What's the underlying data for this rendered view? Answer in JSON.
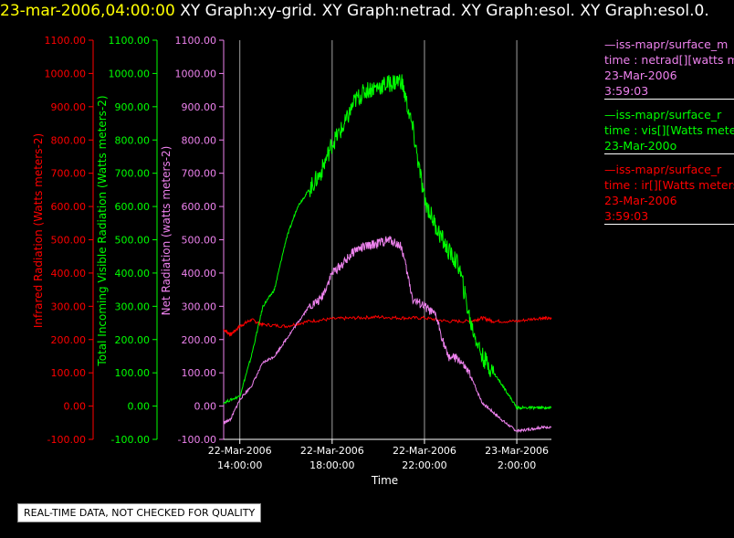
{
  "header": {
    "datetime": "23-mar-2006,04:00:00",
    "titles": "XY Graph:xy-grid.  XY Graph:netrad.  XY Graph:esol.  XY Graph:esol.0."
  },
  "notice": "REAL-TIME DATA, NOT CHECKED FOR QUALITY",
  "legend": [
    {
      "lines": [
        "—iss-mapr/surface_m",
        "time : netrad[][watts me",
        "23-Mar-2006",
        "3:59:03"
      ],
      "color": "#ee82ee"
    },
    {
      "lines": [
        "—iss-mapr/surface_r",
        "time : vis[][Watts mete",
        "23-Mar-200o"
      ],
      "color": "#00ff00"
    },
    {
      "lines": [
        "—iss-mapr/surface_r",
        "time : ir[][Watts meters",
        "23-Mar-2006",
        "3:59:03"
      ],
      "color": "#ff0000"
    }
  ],
  "chart_data": {
    "type": "line",
    "xlabel": "Time",
    "x_ticks": [
      {
        "line1": "22-Mar-2006",
        "line2": "14:00:00",
        "hours": 0
      },
      {
        "line1": "22-Mar-2006",
        "line2": "18:00:00",
        "hours": 4
      },
      {
        "line1": "22-Mar-2006",
        "line2": "22:00:00",
        "hours": 8
      },
      {
        "line1": "23-Mar-2006",
        "line2": "2:00:00",
        "hours": 12
      }
    ],
    "xlim_hours": [
      -0.7,
      13.5
    ],
    "ylim": [
      -100,
      1100
    ],
    "y_ticks": [
      "-100.00",
      "0.00",
      "100.00",
      "200.00",
      "300.00",
      "400.00",
      "500.00",
      "600.00",
      "700.00",
      "800.00",
      "900.00",
      "1000.00",
      "1100.00"
    ],
    "axes": [
      {
        "label": "Infrared Radiation (Watts meters-2)",
        "color": "#ff0000"
      },
      {
        "label": "Total Incoming Visible Radiation (Watts meters-2)",
        "color": "#00ff00"
      },
      {
        "label": "Net Radiation (watts meters-2)",
        "color": "#ee82ee"
      }
    ],
    "series": [
      {
        "color": "#ff0000",
        "x_hours": [
          -0.7,
          -0.4,
          0,
          0.5,
          1,
          2,
          3,
          4,
          5,
          6,
          7,
          8,
          9,
          10,
          10.5,
          11,
          12,
          13,
          13.5
        ],
        "values": [
          230,
          215,
          240,
          260,
          245,
          240,
          255,
          262,
          265,
          268,
          265,
          265,
          255,
          255,
          265,
          255,
          255,
          265,
          262
        ]
      },
      {
        "color": "#00ff00",
        "x_hours": [
          -0.7,
          0,
          0.5,
          1,
          1.5,
          2,
          2.5,
          3,
          3.5,
          4,
          4.5,
          5,
          5.5,
          6,
          6.5,
          7,
          7.5,
          8,
          8.5,
          9,
          9.5,
          10,
          10.5,
          11,
          11.5,
          12,
          12.5,
          13,
          13.5
        ],
        "values": [
          10,
          30,
          150,
          300,
          350,
          500,
          600,
          650,
          700,
          790,
          840,
          920,
          950,
          960,
          970,
          980,
          830,
          620,
          540,
          470,
          420,
          250,
          150,
          100,
          50,
          -5,
          -5,
          -5,
          -5
        ]
      },
      {
        "color": "#ee82ee",
        "x_hours": [
          -0.7,
          -0.4,
          0,
          0.5,
          1,
          1.5,
          2,
          2.5,
          3,
          3.5,
          4,
          4.5,
          5,
          5.5,
          6,
          6.5,
          7,
          7.5,
          8,
          8.5,
          9,
          9.5,
          10,
          10.5,
          11,
          11.5,
          12,
          12.5,
          13,
          13.5
        ],
        "values": [
          -50,
          -40,
          20,
          60,
          130,
          150,
          200,
          250,
          300,
          320,
          400,
          430,
          470,
          480,
          490,
          500,
          480,
          320,
          300,
          270,
          150,
          140,
          90,
          10,
          -20,
          -50,
          -75,
          -70,
          -65,
          -62
        ]
      }
    ]
  }
}
